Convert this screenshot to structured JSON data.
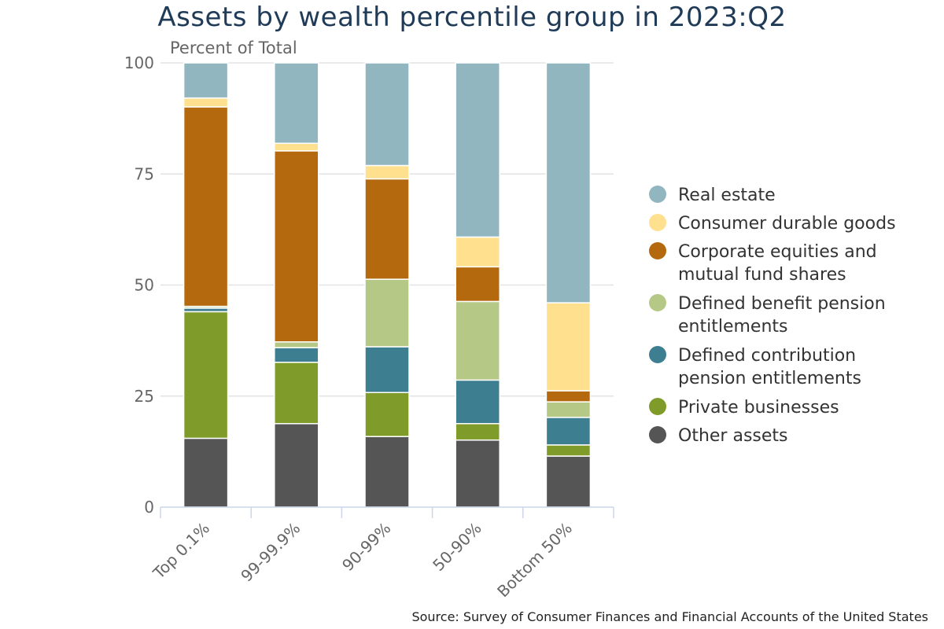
{
  "chart_data": {
    "type": "bar",
    "stacked": true,
    "title": "Assets by wealth percentile group in 2023:Q2",
    "ylabel": "Percent of Total",
    "xlabel": "",
    "categories": [
      "Top 0.1%",
      "99-99.9%",
      "90-99%",
      "50-90%",
      "Bottom 50%"
    ],
    "ylim": [
      0,
      100
    ],
    "yticks": [
      0,
      25,
      50,
      75,
      100
    ],
    "grid": true,
    "legend_position": "right",
    "series": [
      {
        "name": "Other assets",
        "color": "#555555",
        "values": [
          15.5,
          18.8,
          15.9,
          15.1,
          11.5
        ]
      },
      {
        "name": "Private businesses",
        "color": "#7f9c2b",
        "values": [
          28.5,
          13.8,
          9.9,
          3.7,
          2.5
        ]
      },
      {
        "name": "Defined contribution pension entitlements",
        "color": "#3d7f91",
        "values": [
          0.8,
          3.3,
          10.3,
          9.8,
          6.2
        ]
      },
      {
        "name": "Defined benefit pension entitlements",
        "color": "#b5c886",
        "values": [
          0.4,
          1.3,
          15.2,
          17.7,
          3.5
        ]
      },
      {
        "name": "Corporate equities and mutual fund shares",
        "color": "#b5690f",
        "values": [
          44.9,
          43.0,
          22.6,
          7.8,
          2.5
        ]
      },
      {
        "name": "Consumer durable goods",
        "color": "#fee08f",
        "values": [
          2.0,
          1.7,
          3.0,
          6.7,
          19.8
        ]
      },
      {
        "name": "Real estate",
        "color": "#92b6c0",
        "values": [
          7.9,
          18.1,
          23.1,
          39.2,
          54.0
        ]
      }
    ],
    "legend_order": [
      "Real estate",
      "Consumer durable goods",
      "Corporate equities and mutual fund shares",
      "Defined benefit pension entitlements",
      "Defined contribution pension entitlements",
      "Private businesses",
      "Other assets"
    ],
    "legend_lines": [
      [
        "Real estate"
      ],
      [
        "Consumer durable goods"
      ],
      [
        "Corporate equities and",
        "mutual fund shares"
      ],
      [
        "Defined benefit pension",
        "entitlements"
      ],
      [
        "Defined contribution",
        "pension entitlements"
      ],
      [
        "Private businesses"
      ],
      [
        "Other assets"
      ]
    ],
    "source": "Source: Survey of Consumer Finances and Financial Accounts of the United States"
  }
}
